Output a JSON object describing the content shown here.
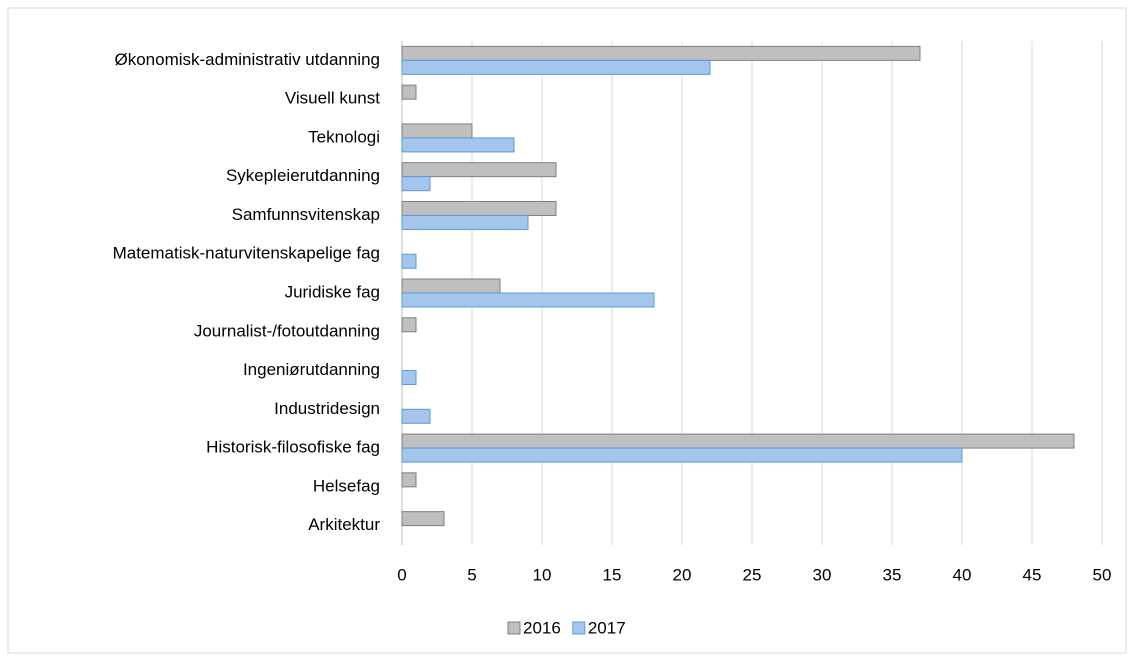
{
  "chart_data": {
    "type": "hbar",
    "categories": [
      "Økonomisk-administrativ utdanning",
      "Visuell kunst",
      "Teknologi",
      "Sykepleierutdanning",
      "Samfunnsvitenskap",
      "Matematisk-naturvitenskapelige fag",
      "Juridiske fag",
      "Journalist-/fotoutdanning",
      "Ingeniørutdanning",
      "Industridesign",
      "Historisk-filosofiske fag",
      "Helsefag",
      "Arkitektur"
    ],
    "series": [
      {
        "name": "2016",
        "color": "#bfbfbf",
        "stroke": "#7f7f7f",
        "values": [
          37,
          1,
          5,
          11,
          11,
          null,
          7,
          1,
          null,
          null,
          48,
          1,
          3
        ]
      },
      {
        "name": "2017",
        "color": "#a4c6ec",
        "stroke": "#5b9bd5",
        "values": [
          22,
          null,
          8,
          2,
          9,
          1,
          18,
          null,
          1,
          2,
          40,
          null,
          null
        ]
      }
    ],
    "xlim": [
      0,
      50
    ],
    "xticks": [
      0,
      5,
      10,
      15,
      20,
      25,
      30,
      35,
      40,
      45,
      50
    ],
    "grid": true,
    "legend": "bottom"
  }
}
